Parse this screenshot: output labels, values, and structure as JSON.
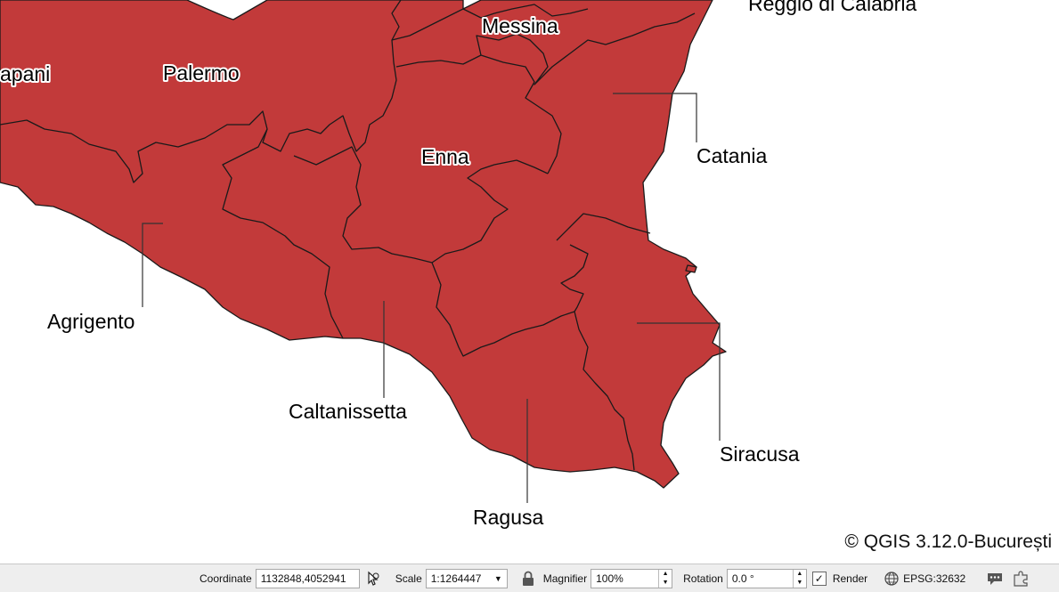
{
  "map": {
    "labels": {
      "reggio": "Reggio di Calabria",
      "messina": "Messina",
      "trapani": "apani",
      "palermo": "Palermo",
      "enna": "Enna",
      "catania": "Catania",
      "agrigento": "Agrigento",
      "caltanissetta": "Caltanissetta",
      "ragusa": "Ragusa",
      "siracusa": "Siracusa"
    },
    "fill_color": "#c23a3a",
    "copyright": "©  QGIS 3.12.0-București"
  },
  "statusbar": {
    "coordinate_label": "Coordinate",
    "coordinate_value": "1132848,4052941",
    "coordinate_icon": "mouse-pointer-icon",
    "scale_label": "Scale",
    "scale_value": "1:1264447",
    "lock_icon": "lock-icon",
    "magnifier_label": "Magnifier",
    "magnifier_value": "100%",
    "rotation_label": "Rotation",
    "rotation_value": "0.0 °",
    "render_label": "Render",
    "render_checked": "✓",
    "crs_value": "EPSG:32632",
    "crs_icon": "globe-icon",
    "messages_icon": "speech-bubble-icon",
    "plugin_icon": "puzzle-icon"
  }
}
